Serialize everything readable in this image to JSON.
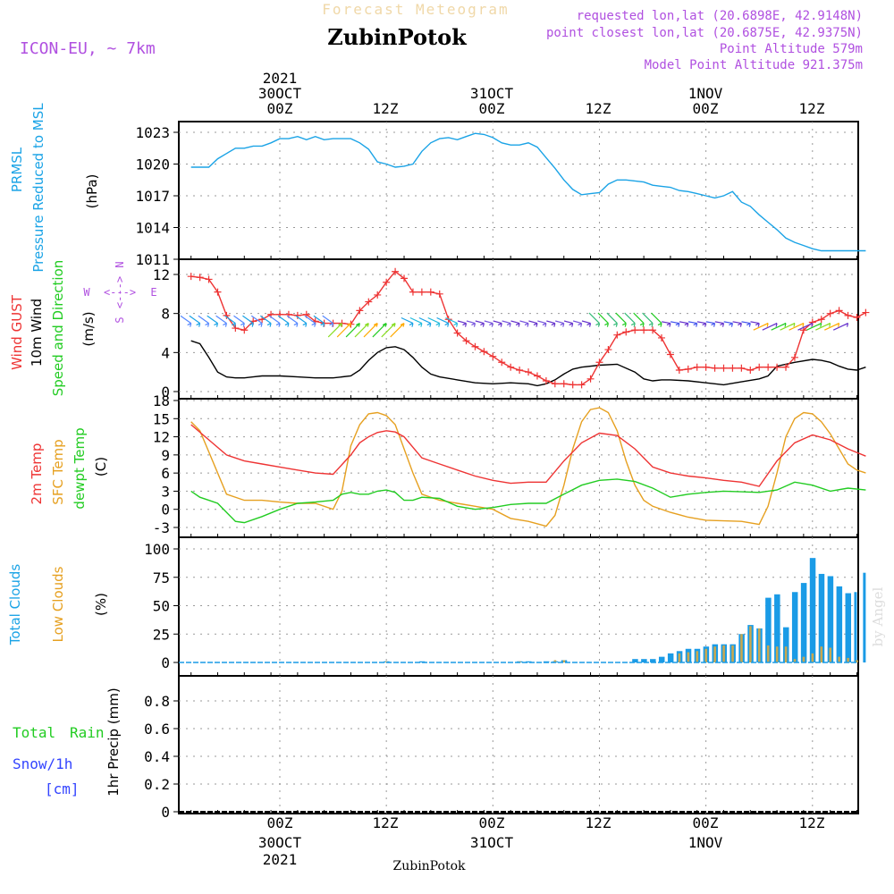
{
  "header": {
    "subtitle": "Forecast Meteogram",
    "location": "ZubinPotok",
    "model": "ICON-EU, ~ 7km",
    "requested": "requested lon,lat (20.6898E, 42.9148N)",
    "closest": "point closest lon,lat (20.6875E, 42.9375N)",
    "point_alt": "Point Altitude 579m",
    "model_alt": "Model Point Altitude 921.375m",
    "watermark": "by Angel"
  },
  "time_axis": {
    "ticks": [
      "00Z",
      "12Z",
      "00Z",
      "12Z",
      "00Z",
      "12Z"
    ],
    "dates": [
      "30OCT",
      "31OCT",
      "1NOV"
    ],
    "year": "2021",
    "footer": "ZubinPotok"
  },
  "colors": {
    "pressure": "#1aa3e6",
    "gust": "#ee3333",
    "wind": "#000000",
    "temp": "#ee3333",
    "sfc": "#e6a020",
    "dew": "#22cc22",
    "total_cloud": "#1a9be6",
    "low_cloud": "#c8a850",
    "purple": "#b050e0",
    "snow": "#3344ff",
    "grid": "#999999"
  },
  "chart_data": [
    {
      "type": "line",
      "panel": "pressure",
      "ylabel_lines": [
        "PRMSL",
        "Pressure Reduced to MSL",
        "(hPa)"
      ],
      "yticks": [
        "1023",
        "1020",
        "1017",
        "1014",
        "1011"
      ],
      "ylim": [
        1011,
        1024
      ],
      "x_unit": "hours from 30OCT2021 00Z",
      "series": [
        {
          "name": "PRMSL",
          "x": [
            -10,
            -8,
            -7,
            -6,
            -5,
            -4,
            -3,
            -2,
            -1,
            0,
            1,
            2,
            3,
            4,
            5,
            6,
            7,
            8,
            9,
            10,
            11,
            12,
            13,
            14,
            15,
            16,
            17,
            18,
            19,
            20,
            21,
            22,
            23,
            24,
            25,
            26,
            27,
            28,
            29,
            30,
            31,
            32,
            33,
            34,
            35,
            36,
            37,
            38,
            39,
            40,
            41,
            42,
            43,
            44,
            45,
            46,
            47,
            48,
            49,
            50,
            51,
            52,
            53,
            54,
            55,
            56,
            57,
            58,
            59,
            60,
            61,
            62,
            66
          ],
          "y": [
            1019.7,
            1019.7,
            1020.5,
            1021.0,
            1021.5,
            1021.5,
            1021.7,
            1021.7,
            1022.0,
            1022.4,
            1022.4,
            1022.6,
            1022.3,
            1022.6,
            1022.3,
            1022.4,
            1022.4,
            1022.4,
            1022.0,
            1021.4,
            1020.2,
            1020.0,
            1019.7,
            1019.8,
            1020.0,
            1021.2,
            1022.0,
            1022.4,
            1022.5,
            1022.3,
            1022.6,
            1022.9,
            1022.8,
            1022.5,
            1022.0,
            1021.8,
            1021.8,
            1022.0,
            1021.6,
            1020.6,
            1019.6,
            1018.5,
            1017.6,
            1017.1,
            1017.2,
            1017.3,
            1018.1,
            1018.5,
            1018.5,
            1018.4,
            1018.3,
            1018.0,
            1017.9,
            1017.8,
            1017.5,
            1017.4,
            1017.2,
            1017.0,
            1016.8,
            1017.0,
            1017.4,
            1016.4,
            1016.0,
            1015.2,
            1014.5,
            1013.8,
            1013.0,
            1012.6,
            1012.3,
            1012.0,
            1011.8,
            1011.8,
            1011.8
          ]
        }
      ]
    },
    {
      "type": "line",
      "panel": "wind",
      "ylabel_lines": [
        "Wind GUST",
        "10m Wind",
        "Speed and Direction",
        "(m/s)"
      ],
      "compass": {
        "n": "N",
        "s": "S",
        "w": "W",
        "e": "E",
        "arrows": "<--->"
      },
      "yticks": [
        "12",
        "8",
        "4",
        "0"
      ],
      "ylim": [
        0,
        13
      ],
      "x_unit": "hours from 30OCT2021 00Z",
      "series": [
        {
          "name": "Wind GUST",
          "x": [
            -10,
            -9,
            -8,
            -7,
            -6,
            -5,
            -4,
            -3,
            -2,
            -1,
            0,
            1,
            2,
            3,
            4,
            5,
            6,
            7,
            8,
            9,
            10,
            11,
            12,
            13,
            14,
            15,
            16,
            17,
            18,
            19,
            20,
            21,
            22,
            23,
            24,
            25,
            26,
            27,
            28,
            29,
            30,
            31,
            32,
            33,
            34,
            35,
            36,
            37,
            38,
            39,
            40,
            41,
            42,
            43,
            44,
            45,
            46,
            47,
            48,
            49,
            50,
            51,
            52,
            53,
            54,
            55,
            56,
            57,
            58,
            59,
            60,
            61,
            62,
            63,
            64,
            65,
            66
          ],
          "y": [
            11.8,
            11.7,
            11.5,
            10.2,
            7.8,
            6.5,
            6.3,
            7.2,
            7.4,
            7.9,
            7.9,
            7.9,
            7.8,
            7.9,
            7.2,
            7.0,
            7.0,
            7.0,
            6.9,
            8.3,
            9.2,
            9.9,
            11.2,
            12.3,
            11.6,
            10.2,
            10.2,
            10.2,
            10.0,
            7.4,
            6.0,
            5.2,
            4.6,
            4.1,
            3.6,
            3.0,
            2.5,
            2.2,
            2.0,
            1.6,
            1.1,
            0.8,
            0.8,
            0.7,
            0.7,
            1.3,
            3.0,
            4.3,
            5.8,
            6.1,
            6.3,
            6.3,
            6.3,
            5.5,
            3.8,
            2.2,
            2.3,
            2.5,
            2.5,
            2.4,
            2.4,
            2.4,
            2.4,
            2.2,
            2.5,
            2.5,
            2.5,
            2.5,
            3.5,
            6.3,
            7.1,
            7.4,
            8.0,
            8.3,
            7.8,
            7.6,
            8.1
          ]
        },
        {
          "name": "10m Wind",
          "x": [
            -10,
            -9,
            -8,
            -7,
            -6,
            -5,
            -4,
            -3,
            -2,
            -1,
            0,
            2,
            4,
            6,
            8,
            9,
            10,
            11,
            12,
            13,
            14,
            15,
            16,
            17,
            18,
            20,
            22,
            24,
            26,
            28,
            29,
            30,
            31,
            32,
            33,
            34,
            36,
            38,
            40,
            41,
            42,
            43,
            44,
            46,
            48,
            50,
            52,
            54,
            55,
            56,
            57,
            58,
            60,
            61,
            62,
            63,
            64,
            65,
            66
          ],
          "y": [
            5.2,
            4.9,
            3.5,
            2.0,
            1.5,
            1.4,
            1.4,
            1.5,
            1.6,
            1.6,
            1.6,
            1.5,
            1.4,
            1.4,
            1.6,
            2.2,
            3.2,
            4.0,
            4.5,
            4.6,
            4.3,
            3.5,
            2.5,
            1.8,
            1.5,
            1.2,
            0.9,
            0.8,
            0.9,
            0.8,
            0.6,
            0.8,
            1.2,
            1.8,
            2.3,
            2.5,
            2.7,
            2.8,
            2.0,
            1.3,
            1.1,
            1.2,
            1.2,
            1.1,
            0.9,
            0.7,
            1.0,
            1.3,
            1.6,
            2.6,
            2.8,
            3.0,
            3.3,
            3.2,
            3.0,
            2.6,
            2.3,
            2.2,
            2.5
          ]
        }
      ]
    },
    {
      "type": "line",
      "panel": "temperature",
      "ylabel_lines": [
        "2m Temp",
        "SFC Temp",
        "dewpt Temp",
        "(C)"
      ],
      "yticks": [
        "18",
        "15",
        "12",
        "9",
        "6",
        "3",
        "0",
        "-3"
      ],
      "ylim": [
        -4,
        18
      ],
      "x_unit": "hours from 30OCT2021 00Z",
      "series": [
        {
          "name": "2m Temp",
          "x": [
            -10,
            -8,
            -6,
            -4,
            -2,
            0,
            2,
            4,
            6,
            8,
            9,
            10,
            11,
            12,
            13,
            14,
            16,
            18,
            20,
            22,
            24,
            26,
            28,
            30,
            32,
            34,
            36,
            38,
            40,
            42,
            44,
            46,
            48,
            50,
            52,
            54,
            56,
            58,
            60,
            62,
            64,
            66
          ],
          "y": [
            14.0,
            11.5,
            9.0,
            8.0,
            7.5,
            7.0,
            6.5,
            6.0,
            5.8,
            9.0,
            11.0,
            12.0,
            12.7,
            13.0,
            12.8,
            12.0,
            8.5,
            7.5,
            6.5,
            5.5,
            4.8,
            4.3,
            4.5,
            4.5,
            8.0,
            11.0,
            12.6,
            12.2,
            10.0,
            7.0,
            6.0,
            5.5,
            5.2,
            4.8,
            4.5,
            3.8,
            8.0,
            11.0,
            12.3,
            11.5,
            10.0,
            8.8
          ]
        },
        {
          "name": "SFC Temp",
          "x": [
            -10,
            -9,
            -8,
            -6,
            -4,
            -2,
            0,
            2,
            4,
            6,
            7,
            8,
            9,
            10,
            11,
            12,
            13,
            14,
            15,
            16,
            18,
            20,
            22,
            24,
            26,
            28,
            30,
            31,
            32,
            33,
            34,
            35,
            36,
            37,
            38,
            39,
            40,
            41,
            42,
            44,
            46,
            48,
            50,
            52,
            54,
            55,
            56,
            57,
            58,
            59,
            60,
            61,
            62,
            63,
            64,
            65,
            66
          ],
          "y": [
            14.5,
            13.0,
            9.5,
            2.5,
            1.5,
            1.5,
            1.2,
            1.0,
            1.0,
            0.0,
            3.0,
            10.5,
            14.0,
            15.8,
            16.0,
            15.5,
            14.0,
            10.0,
            6.0,
            2.5,
            1.5,
            1.0,
            0.5,
            0.0,
            -1.5,
            -2.0,
            -2.8,
            -1.0,
            4.0,
            10.0,
            14.5,
            16.5,
            16.8,
            16.0,
            13.0,
            8.0,
            4.0,
            1.5,
            0.5,
            -0.5,
            -1.3,
            -1.8,
            -1.9,
            -2.0,
            -2.5,
            0.5,
            6.0,
            12.0,
            15.0,
            16.0,
            15.8,
            14.5,
            12.5,
            10.0,
            7.5,
            6.5,
            6.0
          ]
        },
        {
          "name": "dewpt Temp",
          "x": [
            -10,
            -9,
            -8,
            -7,
            -6,
            -5,
            -4,
            -2,
            0,
            2,
            4,
            6,
            7,
            8,
            9,
            10,
            11,
            12,
            13,
            14,
            15,
            16,
            18,
            20,
            22,
            24,
            26,
            28,
            30,
            32,
            34,
            36,
            38,
            40,
            42,
            44,
            46,
            48,
            50,
            52,
            54,
            56,
            58,
            60,
            62,
            64,
            66
          ],
          "y": [
            3.0,
            2.0,
            1.5,
            1.0,
            -0.5,
            -2.0,
            -2.2,
            -1.2,
            0.0,
            1.0,
            1.2,
            1.5,
            2.5,
            2.8,
            2.5,
            2.5,
            3.0,
            3.2,
            2.8,
            1.5,
            1.5,
            2.0,
            1.8,
            0.5,
            0.0,
            0.3,
            0.8,
            1.0,
            1.0,
            2.5,
            4.0,
            4.8,
            5.0,
            4.6,
            3.5,
            2.0,
            2.5,
            2.8,
            3.0,
            2.9,
            2.8,
            3.2,
            4.5,
            4.0,
            3.0,
            3.5,
            3.2
          ]
        }
      ]
    },
    {
      "type": "bar",
      "panel": "clouds",
      "ylabel_lines": [
        "Total Clouds",
        "Low Clouds",
        "(%)"
      ],
      "yticks": [
        "100",
        "75",
        "50",
        "25",
        "0"
      ],
      "ylim": [
        -5,
        105
      ],
      "x_unit": "hours from 30OCT2021 00Z",
      "series": [
        {
          "name": "Total Clouds",
          "x": [
            12,
            16,
            27,
            28,
            30,
            31,
            32,
            40,
            41,
            42,
            43,
            44,
            45,
            46,
            47,
            48,
            49,
            50,
            51,
            52,
            53,
            54,
            55,
            56,
            57,
            58,
            59,
            60,
            61,
            62,
            63,
            64,
            65,
            66
          ],
          "y": [
            1,
            1,
            1,
            1,
            1,
            1,
            2,
            3,
            3,
            3,
            5,
            8,
            10,
            12,
            12,
            14,
            16,
            16,
            16,
            25,
            33,
            30,
            57,
            60,
            31,
            62,
            70,
            92,
            78,
            76,
            67,
            61,
            62,
            79
          ]
        },
        {
          "name": "Low Clouds",
          "x": [
            12,
            27,
            31,
            32,
            45,
            46,
            47,
            48,
            49,
            50,
            51,
            52,
            53,
            54,
            55,
            56,
            57,
            58,
            59,
            60,
            61,
            62,
            63,
            64,
            65
          ],
          "y": [
            1,
            1,
            2,
            2,
            8,
            9,
            10,
            12,
            14,
            15,
            15,
            25,
            32,
            30,
            15,
            14,
            14,
            3,
            5,
            8,
            14,
            13,
            5,
            4,
            2
          ]
        }
      ]
    },
    {
      "type": "bar",
      "panel": "precip",
      "ylabel_lines": [
        "Total",
        "Rain",
        "Snow/1h",
        "[cm]",
        "1hr Precip (mm)"
      ],
      "yticks": [
        "0.8",
        "0.6",
        "0.4",
        "0.2",
        "0"
      ],
      "ylim": [
        0,
        0.95
      ],
      "series": []
    }
  ]
}
